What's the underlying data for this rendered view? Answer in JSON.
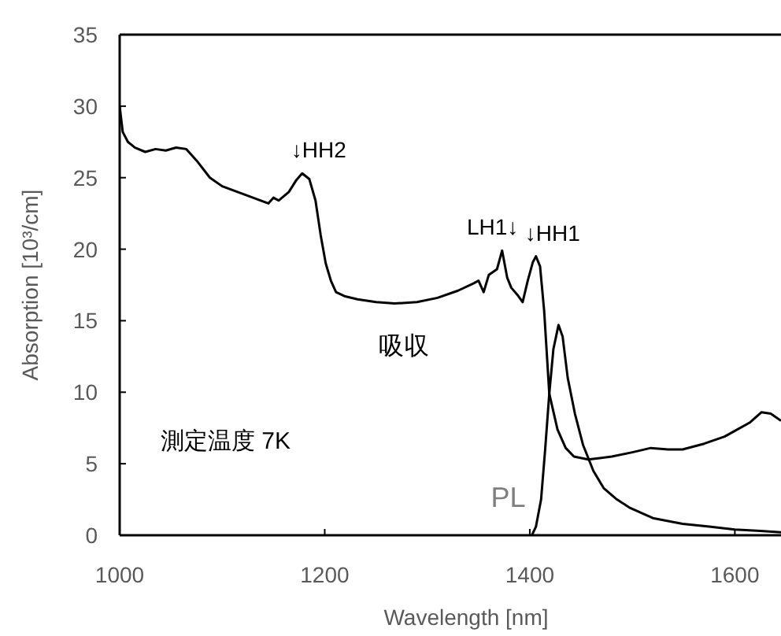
{
  "chart_data": {
    "type": "line",
    "xlabel": "Wavelength [nm]",
    "ylabel": "Absorption [10³/cm]",
    "xlim": [
      1000,
      1645
    ],
    "xticks": [
      1000,
      1200,
      1400,
      1600
    ],
    "ylim": [
      0,
      35
    ],
    "yticks": [
      0,
      5,
      10,
      15,
      20,
      25,
      30,
      35
    ],
    "grid": false,
    "marker": "none",
    "line_style": "solid",
    "series": [
      {
        "color": "#000000",
        "x": [
          1000,
          1003,
          1008,
          1015,
          1025,
          1035,
          1045,
          1055,
          1065,
          1075,
          1088,
          1100,
          1115,
          1130,
          1145,
          1150,
          1155,
          1165,
          1172,
          1178,
          1185,
          1191,
          1196,
          1201,
          1206,
          1211,
          1220,
          1232,
          1250,
          1268,
          1290,
          1310,
          1330,
          1345,
          1350,
          1355,
          1360,
          1368,
          1373,
          1378,
          1382,
          1388,
          1393,
          1398,
          1403,
          1406,
          1410,
          1414,
          1419,
          1427,
          1435,
          1443,
          1457,
          1480,
          1500,
          1518,
          1535,
          1549,
          1570,
          1590,
          1600,
          1615,
          1626,
          1635,
          1645
        ],
        "values": [
          30.0,
          28.2,
          27.5,
          27.1,
          26.8,
          27.0,
          26.9,
          27.1,
          27.0,
          26.2,
          25.0,
          24.4,
          24.0,
          23.6,
          23.2,
          23.6,
          23.4,
          24.0,
          24.8,
          25.3,
          24.9,
          23.4,
          21.0,
          19.0,
          17.8,
          17.0,
          16.7,
          16.5,
          16.3,
          16.2,
          16.3,
          16.6,
          17.1,
          17.6,
          17.8,
          17.0,
          18.2,
          18.6,
          19.9,
          18.0,
          17.3,
          16.8,
          16.3,
          17.8,
          19.1,
          19.5,
          18.8,
          15.7,
          9.9,
          7.4,
          6.1,
          5.5,
          5.3,
          5.5,
          5.8,
          6.1,
          6.0,
          6.0,
          6.4,
          6.9,
          7.3,
          7.9,
          8.6,
          8.5,
          8.0
        ]
      },
      {
        "color": "#000000",
        "x": [
          1402,
          1406,
          1411,
          1415,
          1419,
          1423,
          1428,
          1432,
          1437,
          1444,
          1452,
          1462,
          1472,
          1485,
          1498,
          1520,
          1549,
          1575,
          1600,
          1625,
          1645
        ],
        "values": [
          0,
          0.6,
          2.5,
          6.0,
          9.9,
          13.0,
          14.7,
          13.9,
          11.0,
          8.5,
          6.3,
          4.5,
          3.3,
          2.5,
          1.9,
          1.2,
          0.8,
          0.6,
          0.4,
          0.3,
          0.2
        ]
      }
    ],
    "annotations": [
      {
        "text": "↓HH2",
        "x": 1178,
        "y": 25.3
      },
      {
        "text": "LH1↓",
        "x": 1378,
        "y": 19.9
      },
      {
        "text": "↓HH1",
        "x": 1406,
        "y": 19.5
      },
      {
        "text": "吸収",
        "x": 1268,
        "y": 16.2
      },
      {
        "text": "PL",
        "x": 1402,
        "y": 0
      },
      "測定温度 7K"
    ]
  }
}
